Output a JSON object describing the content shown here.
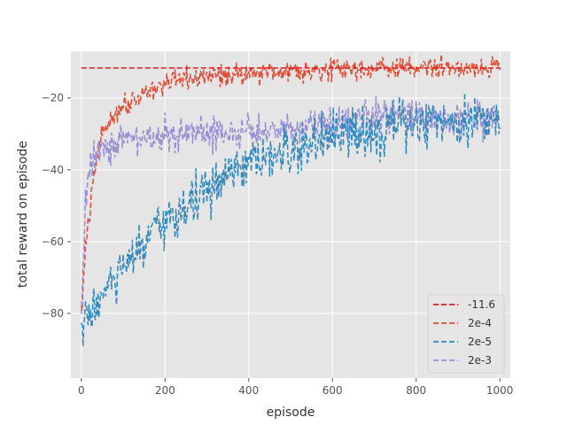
{
  "chart_data": {
    "type": "line",
    "title": "",
    "xlabel": "episode",
    "ylabel": "total reward on episode",
    "xlim": [
      -25,
      1025
    ],
    "ylim": [
      -98,
      -7
    ],
    "xticks": [
      0,
      200,
      400,
      600,
      800,
      1000
    ],
    "yticks": [
      -80,
      -60,
      -40,
      -20
    ],
    "grid": true,
    "style": "ggplot",
    "legend_position": "lower right",
    "series": [
      {
        "name": "-11.6",
        "color": "#E41A1C",
        "kind": "constant",
        "x": [
          0,
          1000
        ],
        "y": [
          -11.6,
          -11.6
        ]
      },
      {
        "name": "2e-4",
        "color": "#E24A33",
        "kind": "noisy",
        "x": [
          0,
          10,
          20,
          30,
          40,
          50,
          75,
          100,
          150,
          200,
          250,
          300,
          350,
          400,
          500,
          600,
          700,
          800,
          900,
          1000
        ],
        "y": [
          -80,
          -62,
          -52,
          -42,
          -35,
          -30,
          -25,
          -22,
          -18.5,
          -16,
          -15,
          -14,
          -13.5,
          -13,
          -12.3,
          -12,
          -11.8,
          -11.6,
          -11.5,
          -11.4
        ],
        "noise": 1.5
      },
      {
        "name": "2e-5",
        "color": "#348ABD",
        "kind": "noisy",
        "x": [
          0,
          20,
          50,
          100,
          150,
          200,
          250,
          300,
          350,
          400,
          450,
          500,
          550,
          600,
          650,
          700,
          800,
          900,
          1000
        ],
        "y": [
          -85,
          -80,
          -75,
          -68,
          -61,
          -55,
          -50,
          -46,
          -42,
          -39,
          -37,
          -35,
          -33,
          -31,
          -30,
          -29,
          -27,
          -26,
          -25
        ],
        "noise": 3.5
      },
      {
        "name": "2e-3",
        "color": "#988ED5",
        "kind": "noisy",
        "x": [
          0,
          10,
          20,
          40,
          60,
          100,
          150,
          200,
          300,
          400,
          500,
          600,
          700,
          800,
          900,
          1000
        ],
        "y": [
          -80,
          -50,
          -38,
          -34,
          -33,
          -32,
          -31,
          -30.5,
          -30,
          -29.5,
          -28,
          -26.5,
          -25.5,
          -25.5,
          -26,
          -27
        ],
        "noise": 2.5
      }
    ]
  }
}
